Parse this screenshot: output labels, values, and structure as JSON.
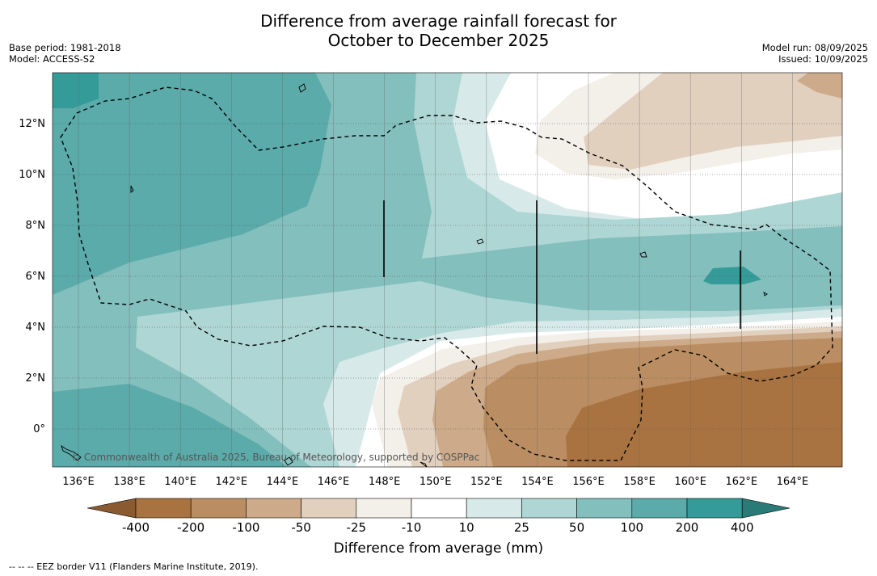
{
  "header": {
    "title_line1": "Difference from average rainfall forecast for",
    "title_line2": "October to December 2025",
    "base_period": "Base period: 1981-2018",
    "model": "Model: ACCESS-S2",
    "model_run": "Model run: 08/09/2025",
    "issued": "Issued: 10/09/2025"
  },
  "map": {
    "lon_labels": [
      "136°E",
      "138°E",
      "140°E",
      "142°E",
      "144°E",
      "146°E",
      "148°E",
      "150°E",
      "152°E",
      "154°E",
      "156°E",
      "158°E",
      "160°E",
      "162°E",
      "164°E"
    ],
    "lat_labels": [
      "12°N",
      "10°N",
      "8°N",
      "6°N",
      "4°N",
      "2°N",
      "0°"
    ],
    "copyright": "© Commonwealth of Australia 2025, Bureau of Meteorology, supported by COSPPac"
  },
  "colorbar": {
    "tick_labels": [
      "-400",
      "-200",
      "-100",
      "-50",
      "-25",
      "-10",
      "10",
      "25",
      "50",
      "100",
      "200",
      "400"
    ],
    "colors": [
      "#a87340",
      "#ba8e62",
      "#cdab8a",
      "#e2d0bf",
      "#f3efe9",
      "#ffffff",
      "#d7eae9",
      "#aed6d4",
      "#83bfbd",
      "#5aabaa",
      "#349b98"
    ],
    "under_color": "#8a5a30",
    "over_color": "#2a7a78",
    "label": "Difference from average (mm)"
  },
  "footnote": "--  --  -- EEZ border V11 (Flanders Marine Institute, 2019)."
}
